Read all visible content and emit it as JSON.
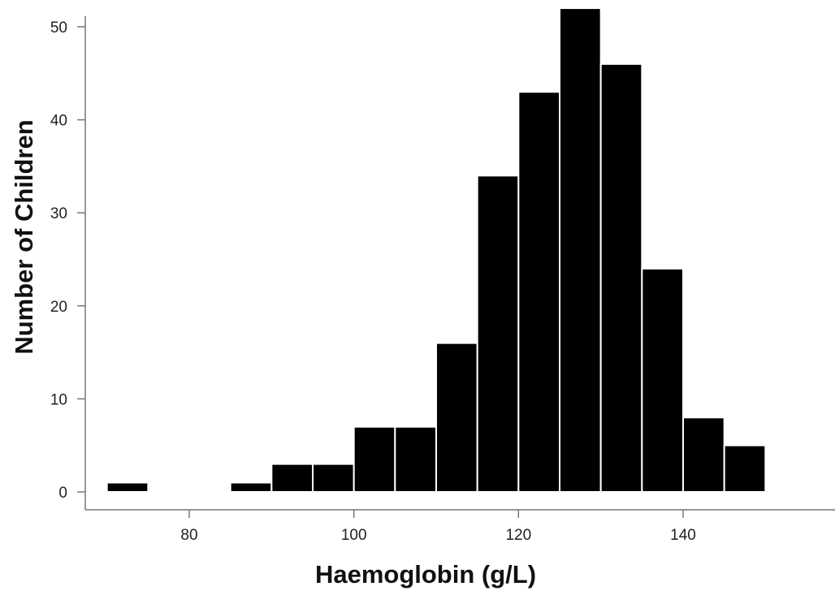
{
  "chart_data": {
    "type": "bar",
    "title": "",
    "xlabel": "Haemoglobin (g/L)",
    "ylabel": "Number of Children",
    "xlim": [
      67,
      157
    ],
    "ylim": [
      0,
      52
    ],
    "x_ticks": [
      80,
      100,
      120,
      140
    ],
    "y_ticks": [
      0,
      10,
      20,
      30,
      40,
      50
    ],
    "grid": false,
    "bar_color": "#000000",
    "bins": [
      {
        "start": 70,
        "end": 75,
        "value": 1
      },
      {
        "start": 85,
        "end": 90,
        "value": 1
      },
      {
        "start": 90,
        "end": 95,
        "value": 3
      },
      {
        "start": 95,
        "end": 100,
        "value": 3
      },
      {
        "start": 100,
        "end": 105,
        "value": 7
      },
      {
        "start": 105,
        "end": 110,
        "value": 7
      },
      {
        "start": 110,
        "end": 115,
        "value": 16
      },
      {
        "start": 115,
        "end": 120,
        "value": 34
      },
      {
        "start": 120,
        "end": 125,
        "value": 43
      },
      {
        "start": 125,
        "end": 130,
        "value": 52
      },
      {
        "start": 130,
        "end": 135,
        "value": 46
      },
      {
        "start": 135,
        "end": 140,
        "value": 24
      },
      {
        "start": 140,
        "end": 145,
        "value": 8
      },
      {
        "start": 145,
        "end": 150,
        "value": 5
      }
    ]
  }
}
